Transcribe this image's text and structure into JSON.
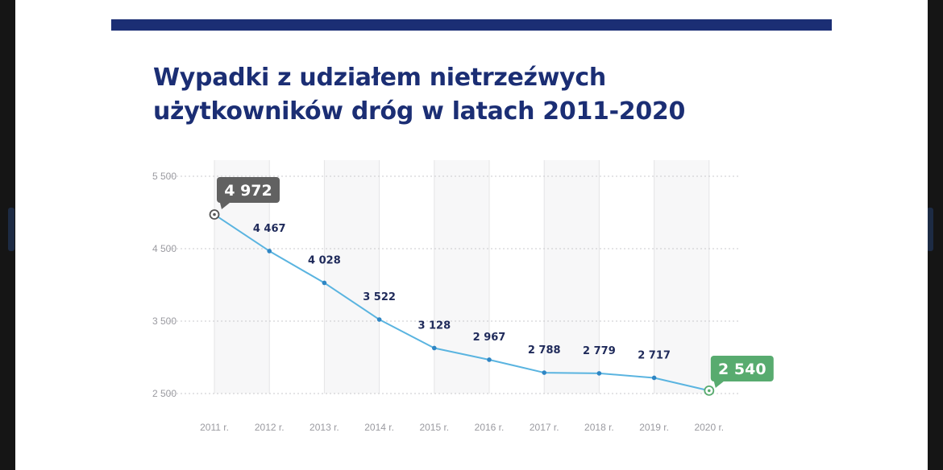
{
  "chart_data": {
    "type": "line",
    "title_lines": [
      "Wypadki z udziałem nietrzeźwych",
      "użytkowników dróg w latach 2011-2020"
    ],
    "categories": [
      "2011 r.",
      "2012 r.",
      "2013 r.",
      "2014 r.",
      "2015 r.",
      "2016 r.",
      "2017 r.",
      "2018 r.",
      "2019 r.",
      "2020 r."
    ],
    "values": [
      4972,
      4467,
      4028,
      3522,
      3128,
      2967,
      2788,
      2779,
      2717,
      2540
    ],
    "value_labels": [
      "4 972",
      "4 467",
      "4 028",
      "3 522",
      "3 128",
      "2 967",
      "2 788",
      "2 779",
      "2 717",
      "2 540"
    ],
    "yticks": [
      2500,
      3500,
      4500,
      5500
    ],
    "ytick_labels": [
      "2 500",
      "3 500",
      "4 500",
      "5 500"
    ],
    "ylim": [
      2500,
      5500
    ],
    "grid": true,
    "xlabel": "",
    "ylabel": "",
    "colors": {
      "line": "#5ab4e0",
      "point": "#2f86c4",
      "first_badge": "#616161",
      "last_badge": "#58ab6f",
      "label": "#1f2a5a",
      "title": "#1b2e74"
    }
  }
}
